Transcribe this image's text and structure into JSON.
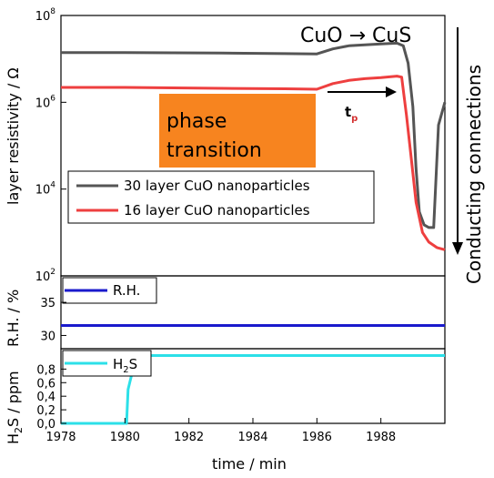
{
  "chart_data": [
    {
      "panel": "resistivity",
      "type": "line",
      "ylabel": "layer resistivity / Ω",
      "yscale": "log",
      "ylim": [
        100,
        100000000
      ],
      "yticks": [
        {
          "value": 100,
          "base": "10",
          "exp": "2"
        },
        {
          "value": 10000,
          "base": "10",
          "exp": "4"
        },
        {
          "value": 1000000,
          "base": "10",
          "exp": "6"
        },
        {
          "value": 100000000,
          "base": "10",
          "exp": "8"
        }
      ],
      "series": [
        {
          "name": "30 layer CuO nanoparticles",
          "color": "#555555",
          "points": [
            [
              1978.0,
              14000000
            ],
            [
              1980.0,
              14000000
            ],
            [
              1983.0,
              13600000
            ],
            [
              1985.0,
              13200000
            ],
            [
              1986.0,
              13000000
            ],
            [
              1986.5,
              17000000
            ],
            [
              1987.0,
              20000000
            ],
            [
              1987.5,
              21000000
            ],
            [
              1988.0,
              22000000
            ],
            [
              1988.5,
              23000000
            ],
            [
              1988.7,
              20000000
            ],
            [
              1988.85,
              8000000
            ],
            [
              1989.0,
              800000
            ],
            [
              1989.1,
              30000
            ],
            [
              1989.2,
              3000
            ],
            [
              1989.35,
              1500
            ],
            [
              1989.5,
              1300
            ],
            [
              1989.65,
              1300
            ],
            [
              1989.8,
              300000
            ],
            [
              1990.0,
              1000000
            ]
          ]
        },
        {
          "name": "16 layer CuO nanoparticles",
          "color": "#ee3f3f",
          "points": [
            [
              1978.0,
              2200000
            ],
            [
              1980.0,
              2200000
            ],
            [
              1983.0,
              2100000
            ],
            [
              1985.0,
              2050000
            ],
            [
              1986.0,
              2000000
            ],
            [
              1986.5,
              2700000
            ],
            [
              1987.0,
              3200000
            ],
            [
              1987.5,
              3500000
            ],
            [
              1988.0,
              3700000
            ],
            [
              1988.5,
              4000000
            ],
            [
              1988.65,
              3800000
            ],
            [
              1988.8,
              500000
            ],
            [
              1988.95,
              50000
            ],
            [
              1989.1,
              5000
            ],
            [
              1989.3,
              1000
            ],
            [
              1989.5,
              600
            ],
            [
              1989.75,
              450
            ],
            [
              1990.0,
              400
            ]
          ]
        }
      ],
      "annotations": {
        "reaction": "CuO → CuS",
        "phase_box_line1": "phase",
        "phase_box_line2": "transition",
        "tp_main": "t",
        "tp_sub": "p",
        "conducting": "Conducting connections",
        "phase_box_color": "#f7841f"
      },
      "legend_position": "center"
    },
    {
      "panel": "humidity",
      "type": "line",
      "ylabel": "R.H. / %",
      "ylim": [
        28,
        39
      ],
      "yticks": [
        "30",
        "35"
      ],
      "ytick_values": [
        30,
        35
      ],
      "series": [
        {
          "name": "R.H.",
          "color": "#1a1acc",
          "points": [
            [
              1978.0,
              31.5
            ],
            [
              1990.0,
              31.5
            ]
          ]
        }
      ],
      "legend_position": "top-left"
    },
    {
      "panel": "h2s",
      "type": "line",
      "ylabel_main": "H",
      "ylabel_sub": "2",
      "ylabel_rest": "S / ppm",
      "ylim": [
        0,
        1.1
      ],
      "yticks": [
        "0,0",
        "0,2",
        "0,4",
        "0,6",
        "0,8"
      ],
      "ytick_values": [
        0,
        0.2,
        0.4,
        0.6,
        0.8
      ],
      "series": [
        {
          "name_main": "H",
          "name_sub": "2",
          "name_rest": "S",
          "color": "#2ce0e8",
          "points": [
            [
              1978.0,
              0.0
            ],
            [
              1980.05,
              0.0
            ],
            [
              1980.1,
              0.5
            ],
            [
              1980.2,
              0.7
            ],
            [
              1980.3,
              1.0
            ],
            [
              1990.0,
              1.0
            ]
          ]
        }
      ],
      "legend_position": "top-left"
    }
  ],
  "xaxis": {
    "label": "time / min",
    "xlim": [
      1978,
      1990
    ],
    "ticks": [
      "1978",
      "1980",
      "1982",
      "1984",
      "1986",
      "1988"
    ],
    "tick_values": [
      1978,
      1980,
      1982,
      1984,
      1986,
      1988
    ]
  }
}
